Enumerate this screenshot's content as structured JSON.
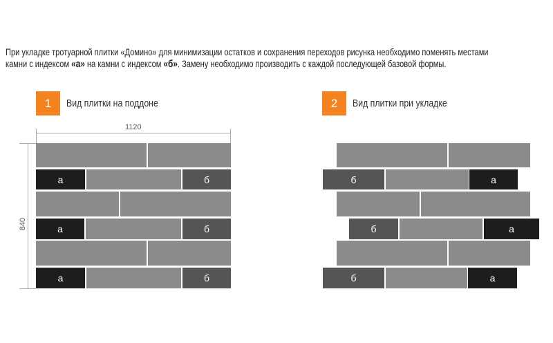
{
  "intro": {
    "line1": "При укладке тротуарной плитки «Домино» для минимизации остатков и сохранения переходов рисунка необходимо поменять местами",
    "line2_pre": "камни с индексом ",
    "index_a": "«а»",
    "line2_mid": " на камни с индексом ",
    "index_b": "«б»",
    "line2_post": ". Замену необходимо производить с каждой последующей базовой формы."
  },
  "section1": {
    "number": "1",
    "title": "Вид плитки на поддоне",
    "width_label": "1120",
    "height_label": "840"
  },
  "section2": {
    "number": "2",
    "title": "Вид плитки при укладке"
  },
  "labels": {
    "a": "а",
    "b": "б"
  },
  "colors": {
    "accent": "#f58220",
    "tile": "#8b8b8b",
    "tile_b": "#555556",
    "tile_a": "#1d1d1d"
  }
}
